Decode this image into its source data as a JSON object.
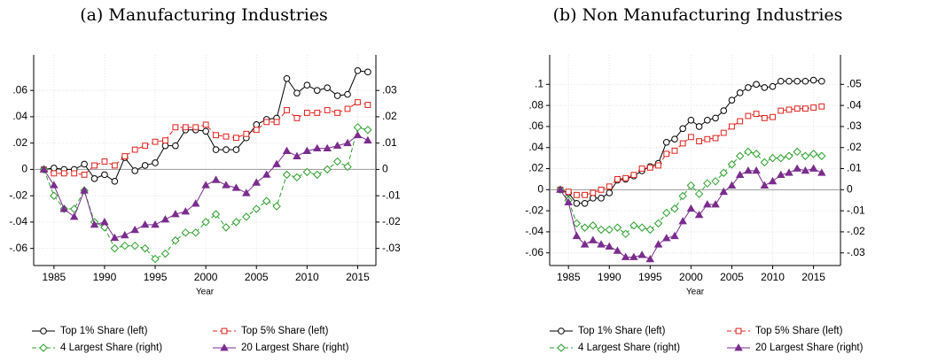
{
  "chart_data": [
    {
      "type": "line",
      "title": "(a) Manufacturing Industries",
      "xlabel": "Year",
      "x": [
        1984,
        1985,
        1986,
        1987,
        1988,
        1989,
        1990,
        1991,
        1992,
        1993,
        1994,
        1995,
        1996,
        1997,
        1998,
        1999,
        2000,
        2001,
        2002,
        2003,
        2004,
        2005,
        2006,
        2007,
        2008,
        2009,
        2010,
        2011,
        2012,
        2013,
        2014,
        2015,
        2016
      ],
      "xlim": [
        1983,
        2016.8
      ],
      "xticks": [
        1985,
        1990,
        1995,
        2000,
        2005,
        2010,
        2015
      ],
      "ylim": [
        -0.073,
        0.087
      ],
      "yticks": [
        {
          "value": -0.06,
          "label": "-.06"
        },
        {
          "value": -0.04,
          "label": "-.04"
        },
        {
          "value": -0.02,
          "label": "-.02"
        },
        0,
        {
          "value": 0.02,
          "label": ".02"
        },
        {
          "value": 0.04,
          "label": ".04"
        },
        {
          "value": 0.06,
          "label": ".06"
        }
      ],
      "y2lim": [
        -0.0365,
        0.0435
      ],
      "y2ticks": [
        {
          "value": -0.03,
          "label": "-.03"
        },
        {
          "value": -0.02,
          "label": "-.02"
        },
        {
          "value": -0.01,
          "label": "-.01"
        },
        0,
        {
          "value": 0.01,
          "label": ".01"
        },
        {
          "value": 0.02,
          "label": ".02"
        },
        {
          "value": 0.03,
          "label": ".03"
        }
      ],
      "grid": true,
      "series": [
        {
          "name": "Top 1% Share (left)",
          "color": "#000000",
          "marker": "circle",
          "dash": false,
          "axis": "y",
          "values": [
            0,
            0.001,
            0,
            0,
            0.004,
            -0.007,
            -0.004,
            -0.009,
            0.009,
            -0.001,
            0.003,
            0.005,
            0.018,
            0.018,
            0.03,
            0.03,
            0.029,
            0.015,
            0.015,
            0.015,
            0.024,
            0.034,
            0.038,
            0.039,
            0.069,
            0.058,
            0.064,
            0.06,
            0.062,
            0.056,
            0.057,
            0.075,
            0.074
          ]
        },
        {
          "name": "Top 5% Share (left)",
          "color": "#e0201b",
          "marker": "square",
          "dash": true,
          "axis": "y",
          "values": [
            0,
            -0.003,
            -0.003,
            -0.003,
            -0.004,
            0.003,
            0.006,
            0.003,
            0.01,
            0.015,
            0.018,
            0.021,
            0.022,
            0.032,
            0.032,
            0.032,
            0.034,
            0.026,
            0.025,
            0.024,
            0.027,
            0.03,
            0.036,
            0.036,
            0.045,
            0.039,
            0.043,
            0.043,
            0.045,
            0.043,
            0.046,
            0.051,
            0.049
          ]
        },
        {
          "name": "4 Largest Share (right)",
          "color": "#2ca02c",
          "marker": "diamond",
          "dash": true,
          "axis": "y2",
          "values": [
            0,
            -0.01,
            -0.015,
            -0.015,
            -0.008,
            -0.02,
            -0.022,
            -0.03,
            -0.029,
            -0.029,
            -0.03,
            -0.034,
            -0.032,
            -0.027,
            -0.024,
            -0.024,
            -0.02,
            -0.017,
            -0.022,
            -0.02,
            -0.018,
            -0.015,
            -0.012,
            -0.014,
            -0.002,
            -0.003,
            -0.001,
            -0.002,
            0,
            0.003,
            0.001,
            0.016,
            0.015
          ]
        },
        {
          "name": "20 Largest Share (right)",
          "color": "#7b2d8e",
          "marker": "triangle",
          "dash": false,
          "axis": "y2",
          "values": [
            0,
            -0.006,
            -0.015,
            -0.018,
            -0.008,
            -0.021,
            -0.02,
            -0.026,
            -0.025,
            -0.023,
            -0.021,
            -0.021,
            -0.019,
            -0.017,
            -0.016,
            -0.013,
            -0.006,
            -0.004,
            -0.006,
            -0.007,
            -0.009,
            -0.005,
            -0.002,
            0.002,
            0.007,
            0.005,
            0.007,
            0.008,
            0.008,
            0.009,
            0.01,
            0.013,
            0.011
          ]
        }
      ]
    },
    {
      "type": "line",
      "title": "(b) Non Manufacturing Industries",
      "xlabel": "Year",
      "x": [
        1984,
        1985,
        1986,
        1987,
        1988,
        1989,
        1990,
        1991,
        1992,
        1993,
        1994,
        1995,
        1996,
        1997,
        1998,
        1999,
        2000,
        2001,
        2002,
        2003,
        2004,
        2005,
        2006,
        2007,
        2008,
        2009,
        2010,
        2011,
        2012,
        2013,
        2014,
        2015,
        2016
      ],
      "xlim": [
        1982.7,
        2018.3
      ],
      "xticks": [
        1985,
        1990,
        1995,
        2000,
        2005,
        2010,
        2015
      ],
      "ylim": [
        -0.072,
        0.128
      ],
      "yticks": [
        {
          "value": -0.06,
          "label": "-.06"
        },
        {
          "value": -0.04,
          "label": "-.04"
        },
        {
          "value": -0.02,
          "label": "-.02"
        },
        0,
        {
          "value": 0.02,
          "label": ".02"
        },
        {
          "value": 0.04,
          "label": ".04"
        },
        {
          "value": 0.06,
          "label": ".06"
        },
        {
          "value": 0.08,
          "label": ".08"
        },
        {
          "value": 0.1,
          "label": ".1"
        }
      ],
      "y2lim": [
        -0.036,
        0.064
      ],
      "y2ticks": [
        {
          "value": -0.03,
          "label": "-.03"
        },
        {
          "value": -0.02,
          "label": "-.02"
        },
        {
          "value": -0.01,
          "label": "-.01"
        },
        0,
        {
          "value": 0.01,
          "label": ".01"
        },
        {
          "value": 0.02,
          "label": ".02"
        },
        {
          "value": 0.03,
          "label": ".03"
        },
        {
          "value": 0.04,
          "label": ".04"
        },
        {
          "value": 0.05,
          "label": ".05"
        }
      ],
      "grid": true,
      "series": [
        {
          "name": "Top 1% Share (left)",
          "color": "#000000",
          "marker": "circle",
          "dash": false,
          "axis": "y",
          "values": [
            0,
            -0.003,
            -0.013,
            -0.013,
            -0.008,
            -0.008,
            -0.003,
            0.009,
            0.01,
            0.013,
            0.018,
            0.022,
            0.025,
            0.045,
            0.048,
            0.058,
            0.066,
            0.06,
            0.066,
            0.068,
            0.075,
            0.085,
            0.092,
            0.097,
            0.1,
            0.097,
            0.098,
            0.103,
            0.103,
            0.103,
            0.103,
            0.104,
            0.103
          ]
        },
        {
          "name": "Top 5% Share (left)",
          "color": "#e0201b",
          "marker": "square",
          "dash": true,
          "axis": "y",
          "values": [
            0,
            -0.002,
            -0.005,
            -0.005,
            -0.003,
            0,
            0.003,
            0.01,
            0.011,
            0.014,
            0.02,
            0.021,
            0.023,
            0.034,
            0.037,
            0.044,
            0.05,
            0.046,
            0.048,
            0.049,
            0.054,
            0.06,
            0.065,
            0.07,
            0.072,
            0.068,
            0.069,
            0.075,
            0.076,
            0.077,
            0.077,
            0.078,
            0.079
          ]
        },
        {
          "name": "4 Largest Share (right)",
          "color": "#2ca02c",
          "marker": "diamond",
          "dash": true,
          "axis": "y2",
          "values": [
            0,
            -0.005,
            -0.016,
            -0.018,
            -0.017,
            -0.019,
            -0.019,
            -0.018,
            -0.021,
            -0.017,
            -0.018,
            -0.019,
            -0.016,
            -0.011,
            -0.009,
            -0.003,
            0.002,
            -0.002,
            0.003,
            0.004,
            0.008,
            0.012,
            0.016,
            0.018,
            0.017,
            0.013,
            0.015,
            0.015,
            0.016,
            0.018,
            0.016,
            0.017,
            0.016
          ]
        },
        {
          "name": "20 Largest Share (right)",
          "color": "#7b2d8e",
          "marker": "triangle",
          "dash": false,
          "axis": "y2",
          "values": [
            0,
            -0.006,
            -0.022,
            -0.026,
            -0.024,
            -0.026,
            -0.027,
            -0.029,
            -0.032,
            -0.032,
            -0.031,
            -0.033,
            -0.026,
            -0.023,
            -0.022,
            -0.015,
            -0.009,
            -0.012,
            -0.007,
            -0.007,
            -0.001,
            0.002,
            0.007,
            0.009,
            0.009,
            0.002,
            0.004,
            0.007,
            0.008,
            0.01,
            0.009,
            0.01,
            0.008
          ]
        }
      ]
    }
  ]
}
